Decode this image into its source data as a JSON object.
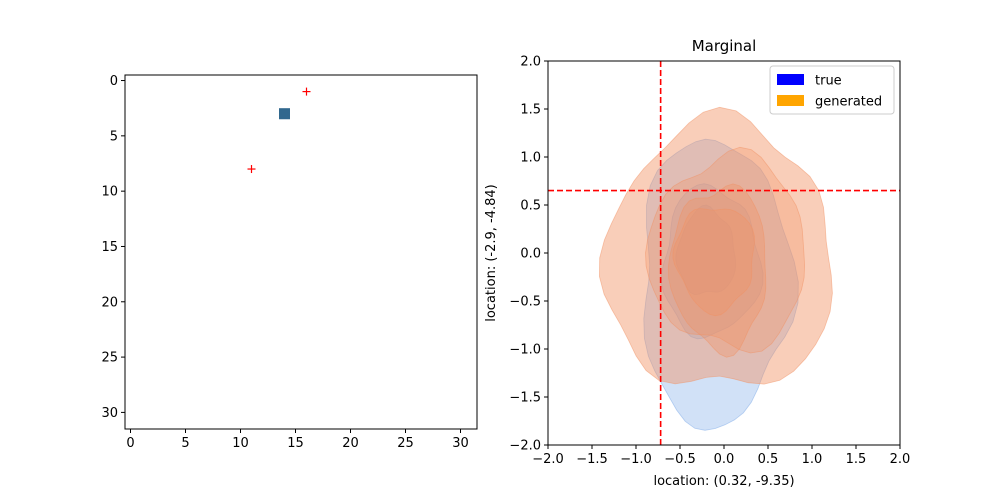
{
  "chart_data": [
    {
      "type": "heatmap",
      "title": "",
      "xlabel": "",
      "ylabel": "",
      "grid_size": 32,
      "xlim": [
        -0.5,
        31.5
      ],
      "ylim": [
        31.5,
        -0.5
      ],
      "xticks": [
        0,
        5,
        10,
        15,
        20,
        25,
        30
      ],
      "yticks": [
        0,
        5,
        10,
        15,
        20,
        25,
        30
      ],
      "grid": false,
      "cells": [
        {
          "x": 14,
          "y": 3,
          "color": "#31688e"
        }
      ],
      "markers": [
        {
          "x": 16,
          "y": 1,
          "symbol": "+",
          "color": "#ff0000"
        },
        {
          "x": 11,
          "y": 8,
          "symbol": "+",
          "color": "#ff0000"
        }
      ]
    },
    {
      "type": "kde_contour",
      "title": "Marginal",
      "xlabel": "location: (0.32, -9.35)",
      "ylabel": "location: (-2.9, -4.84)",
      "xlim": [
        -2.0,
        2.0
      ],
      "ylim": [
        -2.0,
        2.0
      ],
      "xticks": [
        -2.0,
        -1.5,
        -1.0,
        -0.5,
        0.0,
        0.5,
        1.0,
        1.5,
        2.0
      ],
      "yticks": [
        -2.0,
        -1.5,
        -1.0,
        -0.5,
        0.0,
        0.5,
        1.0,
        1.5,
        2.0
      ],
      "grid": false,
      "legend_position": "top-right",
      "reference_lines": {
        "x": -0.72,
        "y": 0.65,
        "color": "#ff0000",
        "style": "dashed"
      },
      "series": [
        {
          "name": "true",
          "legend_color": "#0000ff",
          "fill_color": "#7aa8e8",
          "levels": [
            {
              "center": [
                -0.1,
                -0.3
              ],
              "rx": 0.85,
              "ry": 1.5,
              "alpha": 0.35
            },
            {
              "center": [
                -0.15,
                -0.1
              ],
              "rx": 0.55,
              "ry": 0.78,
              "alpha": 0.3
            },
            {
              "center": [
                -0.2,
                0.0
              ],
              "rx": 0.33,
              "ry": 0.45,
              "alpha": 0.35
            }
          ]
        },
        {
          "name": "generated",
          "legend_color": "#ffa500",
          "fill_color": "#f29264",
          "levels": [
            {
              "center": [
                -0.05,
                -0.05
              ],
              "rx": 1.3,
              "ry": 1.4,
              "alpha": 0.45
            },
            {
              "center": [
                0.05,
                0.0
              ],
              "rx": 0.9,
              "ry": 1.0,
              "alpha": 0.3
            },
            {
              "center": [
                -0.05,
                -0.15
              ],
              "rx": 0.55,
              "ry": 0.85,
              "alpha": 0.35
            },
            {
              "center": [
                -0.1,
                -0.05
              ],
              "rx": 0.45,
              "ry": 0.55,
              "alpha": 0.35
            }
          ]
        }
      ]
    }
  ]
}
